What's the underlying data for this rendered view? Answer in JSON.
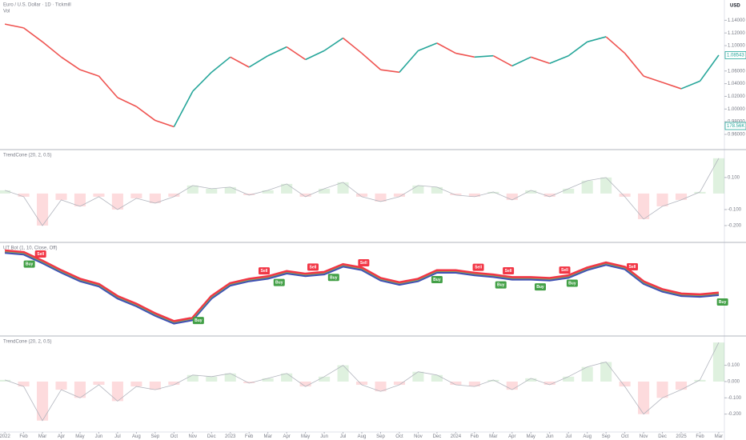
{
  "chart_data": [
    {
      "type": "line",
      "title": "Euro / U.S. Dollar · 1D · Tickmill",
      "subtitle": "Vol",
      "currency": "USD",
      "color": "#26a69a",
      "last_label": "1.08543",
      "volume_label": "178.56K",
      "x": [
        0,
        1,
        2,
        3,
        4,
        5,
        6,
        7,
        8,
        9,
        10,
        11,
        12,
        13,
        14,
        15,
        16,
        17,
        18,
        19,
        20,
        21,
        22,
        23,
        24,
        25,
        26,
        27,
        28,
        29,
        30,
        31,
        32,
        33,
        34,
        35,
        36,
        37,
        38
      ],
      "values": [
        1.134,
        1.128,
        1.106,
        1.082,
        1.062,
        1.052,
        1.018,
        1.004,
        0.982,
        0.972,
        1.028,
        1.058,
        1.082,
        1.066,
        1.084,
        1.098,
        1.078,
        1.092,
        1.112,
        1.088,
        1.062,
        1.058,
        1.092,
        1.104,
        1.088,
        1.082,
        1.084,
        1.068,
        1.082,
        1.072,
        1.084,
        1.106,
        1.114,
        1.088,
        1.052,
        1.042,
        1.032,
        1.044,
        1.085
      ],
      "xlim": [
        -0.26,
        38.3
      ],
      "ylim": [
        0.936,
        1.172
      ],
      "yticks": [
        {
          "value": 1.14,
          "label": "1.14000"
        },
        {
          "value": 1.12,
          "label": "1.12000"
        },
        {
          "value": 1.1,
          "label": "1.10000"
        },
        {
          "value": 1.06,
          "label": "1.06000"
        },
        {
          "value": 1.04,
          "label": "1.04000"
        },
        {
          "value": 1.02,
          "label": "1.02000"
        },
        {
          "value": 1.0,
          "label": "1.00000"
        },
        {
          "value": 0.98,
          "label": "0.98000"
        },
        {
          "value": 0.96,
          "label": "0.96000"
        }
      ]
    },
    {
      "type": "oscillator",
      "title": "TrendCone (20, 2, 0.5)",
      "x": [
        0,
        1,
        2,
        3,
        4,
        5,
        6,
        7,
        8,
        9,
        10,
        11,
        12,
        13,
        14,
        15,
        16,
        17,
        18,
        19,
        20,
        21,
        22,
        23,
        24,
        25,
        26,
        27,
        28,
        29,
        30,
        31,
        32,
        33,
        34,
        35,
        36,
        37,
        38
      ],
      "values": [
        0.02,
        -0.02,
        -0.2,
        -0.04,
        -0.08,
        -0.02,
        -0.1,
        -0.03,
        -0.06,
        -0.02,
        0.05,
        0.03,
        0.04,
        -0.01,
        0.02,
        0.06,
        -0.02,
        0.03,
        0.07,
        -0.02,
        -0.05,
        -0.02,
        0.05,
        0.04,
        -0.01,
        -0.02,
        0.01,
        -0.04,
        0.02,
        -0.02,
        0.03,
        0.08,
        0.1,
        -0.02,
        -0.16,
        -0.08,
        -0.04,
        0.01,
        0.22
      ],
      "xlim": [
        -0.26,
        38.3
      ],
      "ylim": [
        -0.305,
        0.274
      ],
      "yticks": [
        {
          "value": 0.1,
          "label": "0.100"
        },
        {
          "value": -0.1,
          "label": "-0.100"
        },
        {
          "value": -0.2,
          "label": "-0.200"
        }
      ]
    },
    {
      "type": "trail",
      "title": "UT Bot (1, 10, Close, Off)",
      "x": [
        0,
        1,
        2,
        3,
        4,
        5,
        6,
        7,
        8,
        9,
        10,
        11,
        12,
        13,
        14,
        15,
        16,
        17,
        18,
        19,
        20,
        21,
        22,
        23,
        24,
        25,
        26,
        27,
        28,
        29,
        30,
        31,
        32,
        33,
        34,
        35,
        36,
        37,
        38
      ],
      "values": [
        1.136,
        1.132,
        1.112,
        1.09,
        1.07,
        1.058,
        1.03,
        1.012,
        0.99,
        0.972,
        0.98,
        1.03,
        1.06,
        1.07,
        1.076,
        1.088,
        1.082,
        1.086,
        1.104,
        1.096,
        1.072,
        1.062,
        1.07,
        1.09,
        1.09,
        1.084,
        1.08,
        1.074,
        1.074,
        1.072,
        1.078,
        1.096,
        1.108,
        1.098,
        1.064,
        1.046,
        1.036,
        1.034,
        1.038
      ],
      "xlim": [
        -0.26,
        38.3
      ],
      "ylim": [
        0.9415,
        1.1586
      ],
      "signals": [
        {
          "label": "Buy",
          "x": 1.3,
          "color": "#43a047"
        },
        {
          "label": "Sell",
          "x": 1.9,
          "color": "#f23645"
        },
        {
          "label": "Buy",
          "x": 10.3,
          "color": "#43a047"
        },
        {
          "label": "Sell",
          "x": 13.8,
          "color": "#f23645"
        },
        {
          "label": "Buy",
          "x": 14.6,
          "color": "#43a047"
        },
        {
          "label": "Sell",
          "x": 16.4,
          "color": "#f23645"
        },
        {
          "label": "Buy",
          "x": 17.5,
          "color": "#43a047"
        },
        {
          "label": "Sell",
          "x": 19.1,
          "color": "#f23645"
        },
        {
          "label": "Buy",
          "x": 23.0,
          "color": "#43a047"
        },
        {
          "label": "Sell",
          "x": 25.2,
          "color": "#f23645"
        },
        {
          "label": "Buy",
          "x": 26.4,
          "color": "#43a047"
        },
        {
          "label": "Sell",
          "x": 26.8,
          "color": "#f23645"
        },
        {
          "label": "Buy",
          "x": 28.5,
          "color": "#43a047"
        },
        {
          "label": "Sell",
          "x": 29.8,
          "color": "#f23645"
        },
        {
          "label": "Buy",
          "x": 30.2,
          "color": "#43a047"
        },
        {
          "label": "Sell",
          "x": 33.4,
          "color": "#f23645"
        },
        {
          "label": "Buy",
          "x": 38.2,
          "color": "#43a047"
        }
      ]
    },
    {
      "type": "oscillator",
      "title": "TrendCone (20, 2, 0.5)",
      "x": [
        0,
        1,
        2,
        3,
        4,
        5,
        6,
        7,
        8,
        9,
        10,
        11,
        12,
        13,
        14,
        15,
        16,
        17,
        18,
        19,
        20,
        21,
        22,
        23,
        24,
        25,
        26,
        27,
        28,
        29,
        30,
        31,
        32,
        33,
        34,
        35,
        36,
        37,
        38
      ],
      "values": [
        0.01,
        -0.03,
        -0.24,
        -0.05,
        -0.1,
        -0.02,
        -0.12,
        -0.03,
        -0.05,
        -0.02,
        0.04,
        0.03,
        0.05,
        -0.01,
        0.02,
        0.05,
        -0.03,
        0.03,
        0.1,
        -0.02,
        -0.06,
        -0.02,
        0.06,
        0.04,
        -0.02,
        -0.03,
        0.01,
        -0.05,
        0.02,
        -0.02,
        0.03,
        0.09,
        0.12,
        -0.03,
        -0.2,
        -0.1,
        -0.05,
        0.01,
        0.24
      ],
      "xlim": [
        -0.26,
        38.3
      ],
      "ylim": [
        -0.31,
        0.28
      ],
      "yticks": [
        {
          "value": 0.1,
          "label": "0.100"
        },
        {
          "value": 0,
          "label": "0.000"
        },
        {
          "value": -0.1,
          "label": "-0.100"
        },
        {
          "value": -0.2,
          "label": "-0.200"
        }
      ]
    }
  ],
  "time_axis": {
    "xlim": [
      -0.26,
      38.3
    ],
    "ticks": [
      {
        "value": 0,
        "label": "2022"
      },
      {
        "value": 1,
        "label": "Feb"
      },
      {
        "value": 2,
        "label": "Mar"
      },
      {
        "value": 3,
        "label": "Apr"
      },
      {
        "value": 4,
        "label": "May"
      },
      {
        "value": 5,
        "label": "Jun"
      },
      {
        "value": 6,
        "label": "Jul"
      },
      {
        "value": 7,
        "label": "Aug"
      },
      {
        "value": 8,
        "label": "Sep"
      },
      {
        "value": 9,
        "label": "Oct"
      },
      {
        "value": 10,
        "label": "Nov"
      },
      {
        "value": 11,
        "label": "Dec"
      },
      {
        "value": 12,
        "label": "2023"
      },
      {
        "value": 13,
        "label": "Feb"
      },
      {
        "value": 14,
        "label": "Mar"
      },
      {
        "value": 15,
        "label": "Apr"
      },
      {
        "value": 16,
        "label": "May"
      },
      {
        "value": 17,
        "label": "Jun"
      },
      {
        "value": 18,
        "label": "Jul"
      },
      {
        "value": 19,
        "label": "Aug"
      },
      {
        "value": 20,
        "label": "Sep"
      },
      {
        "value": 21,
        "label": "Oct"
      },
      {
        "value": 22,
        "label": "Nov"
      },
      {
        "value": 23,
        "label": "Dec"
      },
      {
        "value": 24,
        "label": "2024"
      },
      {
        "value": 25,
        "label": "Feb"
      },
      {
        "value": 26,
        "label": "Mar"
      },
      {
        "value": 27,
        "label": "Apr"
      },
      {
        "value": 28,
        "label": "May"
      },
      {
        "value": 29,
        "label": "Jun"
      },
      {
        "value": 30,
        "label": "Jul"
      },
      {
        "value": 31,
        "label": "Aug"
      },
      {
        "value": 32,
        "label": "Sep"
      },
      {
        "value": 33,
        "label": "Oct"
      },
      {
        "value": 34,
        "label": "Nov"
      },
      {
        "value": 35,
        "label": "Dec"
      },
      {
        "value": 36,
        "label": "2025"
      },
      {
        "value": 37,
        "label": "Feb"
      },
      {
        "value": 38,
        "label": "Mar"
      }
    ]
  }
}
